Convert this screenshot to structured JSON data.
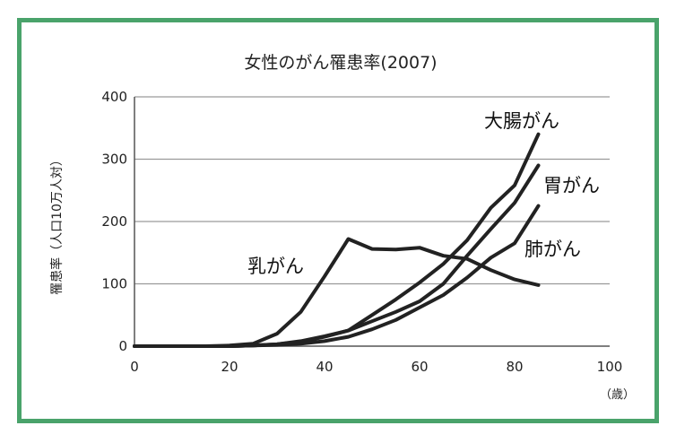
{
  "colors": {
    "frame": "#4aa36b",
    "grid": "#9a9a9a",
    "axis": "#555555",
    "line": "#222222"
  },
  "chart_data": {
    "type": "line",
    "title": "女性のがん罹患率(2007)",
    "ylabel": "罹患率（人口10万人対）",
    "xunit": "（歳）",
    "xlim": [
      0,
      100
    ],
    "ylim": [
      0,
      400
    ],
    "xticks": [
      0,
      20,
      40,
      60,
      80,
      100
    ],
    "yticks": [
      0,
      100,
      200,
      300,
      400
    ],
    "grid": true,
    "series": [
      {
        "name": "乳がん",
        "x": [
          0,
          15,
          20,
          25,
          30,
          35,
          40,
          45,
          50,
          55,
          60,
          65,
          70,
          75,
          80,
          85
        ],
        "y": [
          0,
          0,
          1,
          4,
          20,
          55,
          112,
          172,
          156,
          155,
          158,
          145,
          140,
          122,
          107,
          98
        ]
      },
      {
        "name": "大腸がん",
        "x": [
          0,
          20,
          25,
          30,
          35,
          40,
          45,
          50,
          55,
          60,
          65,
          70,
          75,
          80,
          85
        ],
        "y": [
          0,
          0,
          1,
          3,
          7,
          15,
          25,
          50,
          75,
          102,
          132,
          170,
          222,
          258,
          340
        ]
      },
      {
        "name": "胃がん",
        "x": [
          0,
          20,
          25,
          30,
          35,
          40,
          45,
          50,
          55,
          60,
          65,
          70,
          75,
          80,
          85
        ],
        "y": [
          0,
          0,
          1,
          3,
          8,
          16,
          25,
          40,
          55,
          72,
          100,
          145,
          188,
          230,
          290
        ]
      },
      {
        "name": "肺がん",
        "x": [
          0,
          20,
          25,
          30,
          35,
          40,
          45,
          50,
          55,
          60,
          65,
          70,
          75,
          80,
          85
        ],
        "y": [
          0,
          0,
          1,
          2,
          4,
          8,
          15,
          27,
          42,
          62,
          82,
          110,
          142,
          165,
          225
        ]
      }
    ]
  }
}
